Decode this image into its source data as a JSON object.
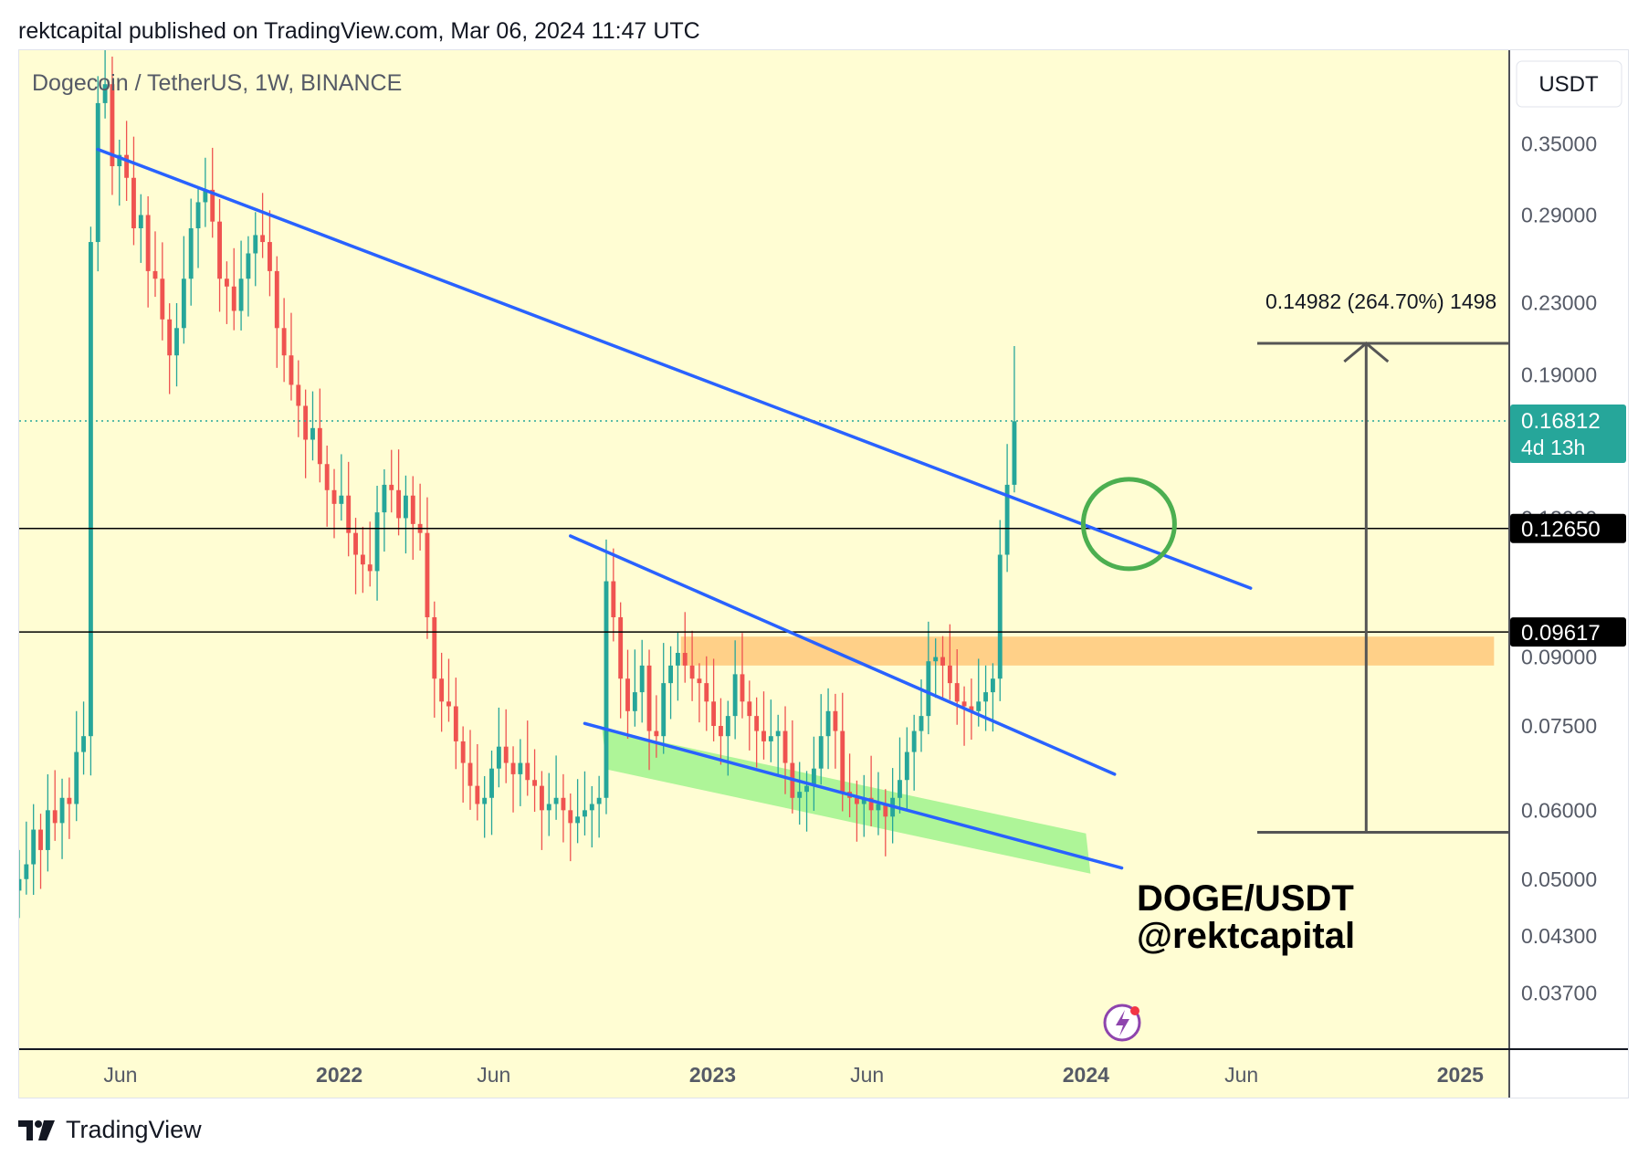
{
  "header": {
    "text": "rektcapital published on TradingView.com, Mar 06, 2024 11:47 UTC"
  },
  "footer": {
    "brand": "TradingView"
  },
  "colors": {
    "background": "#fffdd3",
    "up": "#26a69a",
    "down": "#ef5350",
    "trendline": "#2962ff",
    "support_zone": "#ffc87a",
    "wedge_zone": "#9af28a",
    "highlight_circle": "#4caf50",
    "measure": "#555555",
    "last_price_tag": "#26a69a",
    "level_tag": "#000000"
  },
  "chart_data": {
    "type": "candlestick",
    "title": "Dogecoin / TetherUS, 1W, BINANCE",
    "currency_button": "USDT",
    "yscale": "log",
    "ylim": [
      0.0325,
      0.44
    ],
    "y_ticks": [
      "0.35000",
      "0.29000",
      "0.23000",
      "0.19000",
      "0.09000",
      "0.07500",
      "0.06000",
      "0.05000",
      "0.04300",
      "0.03700"
    ],
    "y_tick_values": [
      0.35,
      0.29,
      0.23,
      0.19,
      0.09,
      0.075,
      0.06,
      0.05,
      0.043,
      0.037
    ],
    "hidden_tick": {
      "label": "0.13000",
      "value": 0.13
    },
    "xlim": [
      "2021-02-22",
      "2025-02-17"
    ],
    "x_ticks": [
      {
        "label": "Jun",
        "date": "2021-06-01",
        "bold": false
      },
      {
        "label": "2022",
        "date": "2022-01-01",
        "bold": true
      },
      {
        "label": "Jun",
        "date": "2022-06-01",
        "bold": false
      },
      {
        "label": "2023",
        "date": "2023-01-01",
        "bold": true
      },
      {
        "label": "Jun",
        "date": "2023-06-01",
        "bold": false
      },
      {
        "label": "2024",
        "date": "2024-01-01",
        "bold": true
      },
      {
        "label": "Jun",
        "date": "2024-06-01",
        "bold": false
      },
      {
        "label": "2025",
        "date": "2025-01-01",
        "bold": true
      }
    ],
    "candles_note": "approximate weekly close path",
    "candles": {
      "start": "2021-02-22",
      "interval_days": 7,
      "close": [
        0.05,
        0.052,
        0.057,
        0.054,
        0.06,
        0.058,
        0.062,
        0.061,
        0.07,
        0.073,
        0.27,
        0.39,
        0.41,
        0.33,
        0.34,
        0.32,
        0.28,
        0.29,
        0.25,
        0.245,
        0.22,
        0.2,
        0.215,
        0.245,
        0.28,
        0.3,
        0.31,
        0.285,
        0.245,
        0.24,
        0.225,
        0.245,
        0.262,
        0.275,
        0.27,
        0.25,
        0.215,
        0.2,
        0.185,
        0.175,
        0.16,
        0.165,
        0.15,
        0.14,
        0.135,
        0.138,
        0.125,
        0.118,
        0.115,
        0.113,
        0.132,
        0.142,
        0.14,
        0.13,
        0.138,
        0.128,
        0.125,
        0.1,
        0.085,
        0.08,
        0.079,
        0.072,
        0.068,
        0.064,
        0.061,
        0.062,
        0.067,
        0.071,
        0.068,
        0.066,
        0.068,
        0.065,
        0.064,
        0.06,
        0.061,
        0.062,
        0.06,
        0.058,
        0.059,
        0.06,
        0.061,
        0.062,
        0.11,
        0.1,
        0.085,
        0.078,
        0.082,
        0.088,
        0.074,
        0.073,
        0.084,
        0.088,
        0.091,
        0.088,
        0.085,
        0.084,
        0.08,
        0.075,
        0.073,
        0.077,
        0.086,
        0.08,
        0.077,
        0.074,
        0.072,
        0.073,
        0.074,
        0.068,
        0.062,
        0.063,
        0.064,
        0.067,
        0.073,
        0.078,
        0.074,
        0.063,
        0.062,
        0.061,
        0.062,
        0.06,
        0.061,
        0.059,
        0.062,
        0.065,
        0.07,
        0.074,
        0.077,
        0.089,
        0.09,
        0.088,
        0.084,
        0.08,
        0.079,
        0.078,
        0.08,
        0.082,
        0.085,
        0.118,
        0.142,
        0.168
      ],
      "last_candle_high": 0.205
    },
    "last_price": {
      "value": "0.16812",
      "countdown": "4d 13h",
      "level": 0.16812
    },
    "horizontal_levels": [
      {
        "label": "0.12650",
        "value": 0.1265
      },
      {
        "label": "0.09617",
        "value": 0.09617
      }
    ],
    "support_zone": {
      "from": "2022-12-01",
      "to": "2025-02-03",
      "low": 0.088,
      "high": 0.095
    },
    "trendlines": [
      {
        "name": "macro downtrend",
        "p1": {
          "date": "2021-05-10",
          "price": 0.345
        },
        "p2": {
          "date": "2024-06-10",
          "price": 0.108
        }
      },
      {
        "name": "wedge resistance",
        "p1": {
          "date": "2022-08-15",
          "price": 0.124
        },
        "p2": {
          "date": "2024-01-29",
          "price": 0.066
        }
      },
      {
        "name": "wedge support",
        "p1": {
          "date": "2022-08-29",
          "price": 0.0755
        },
        "p2": {
          "date": "2024-02-05",
          "price": 0.0515
        }
      }
    ],
    "wedge_zone": {
      "p1": {
        "date": "2022-09-15",
        "price": 0.0705
      },
      "p2": {
        "date": "2024-01-01",
        "price": 0.0535
      }
    },
    "highlight_circle": {
      "date": "2024-02-12",
      "price": 0.128
    },
    "measure": {
      "from_price": 0.0566,
      "to_price": 0.2065,
      "date": "2024-10-01",
      "label": "0.14982 (264.70%) 1498"
    },
    "watermark": {
      "line1": "DOGE/USDT",
      "line2": "@rektcapital"
    }
  }
}
